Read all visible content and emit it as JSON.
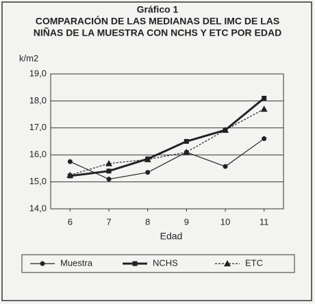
{
  "chart_data": {
    "type": "line",
    "title": "Gráfico 1",
    "subtitle": [
      "COMPARACIÓN DE LAS MEDIANAS DEL IMC DE LAS",
      "NIÑAS DE LA MUESTRA CON NCHS Y ETC POR EDAD"
    ],
    "y_label": "k/m2",
    "x_label": "Edad",
    "categories": [
      "6",
      "7",
      "8",
      "9",
      "10",
      "11"
    ],
    "series": [
      {
        "name": "Muestra",
        "color": "#222222",
        "marker": "circle",
        "values": [
          15.75,
          15.1,
          15.35,
          16.1,
          15.57,
          16.6
        ]
      },
      {
        "name": "NCHS",
        "color": "#222222",
        "marker": "square",
        "values": [
          15.22,
          15.4,
          15.85,
          16.5,
          16.92,
          18.1
        ]
      },
      {
        "name": "ETC",
        "color": "#222222",
        "marker": "triangle",
        "values": [
          15.25,
          15.68,
          15.83,
          16.1,
          16.92,
          17.7
        ]
      }
    ],
    "ylim": [
      14,
      19
    ],
    "yticks": [
      {
        "value": 14,
        "label": "14,0"
      },
      {
        "value": 15,
        "label": "15,0"
      },
      {
        "value": 16,
        "label": "16,0"
      },
      {
        "value": 17,
        "label": "17,0"
      },
      {
        "value": 18,
        "label": "18,0"
      },
      {
        "value": 19,
        "label": "19,0"
      }
    ],
    "grid": true
  }
}
